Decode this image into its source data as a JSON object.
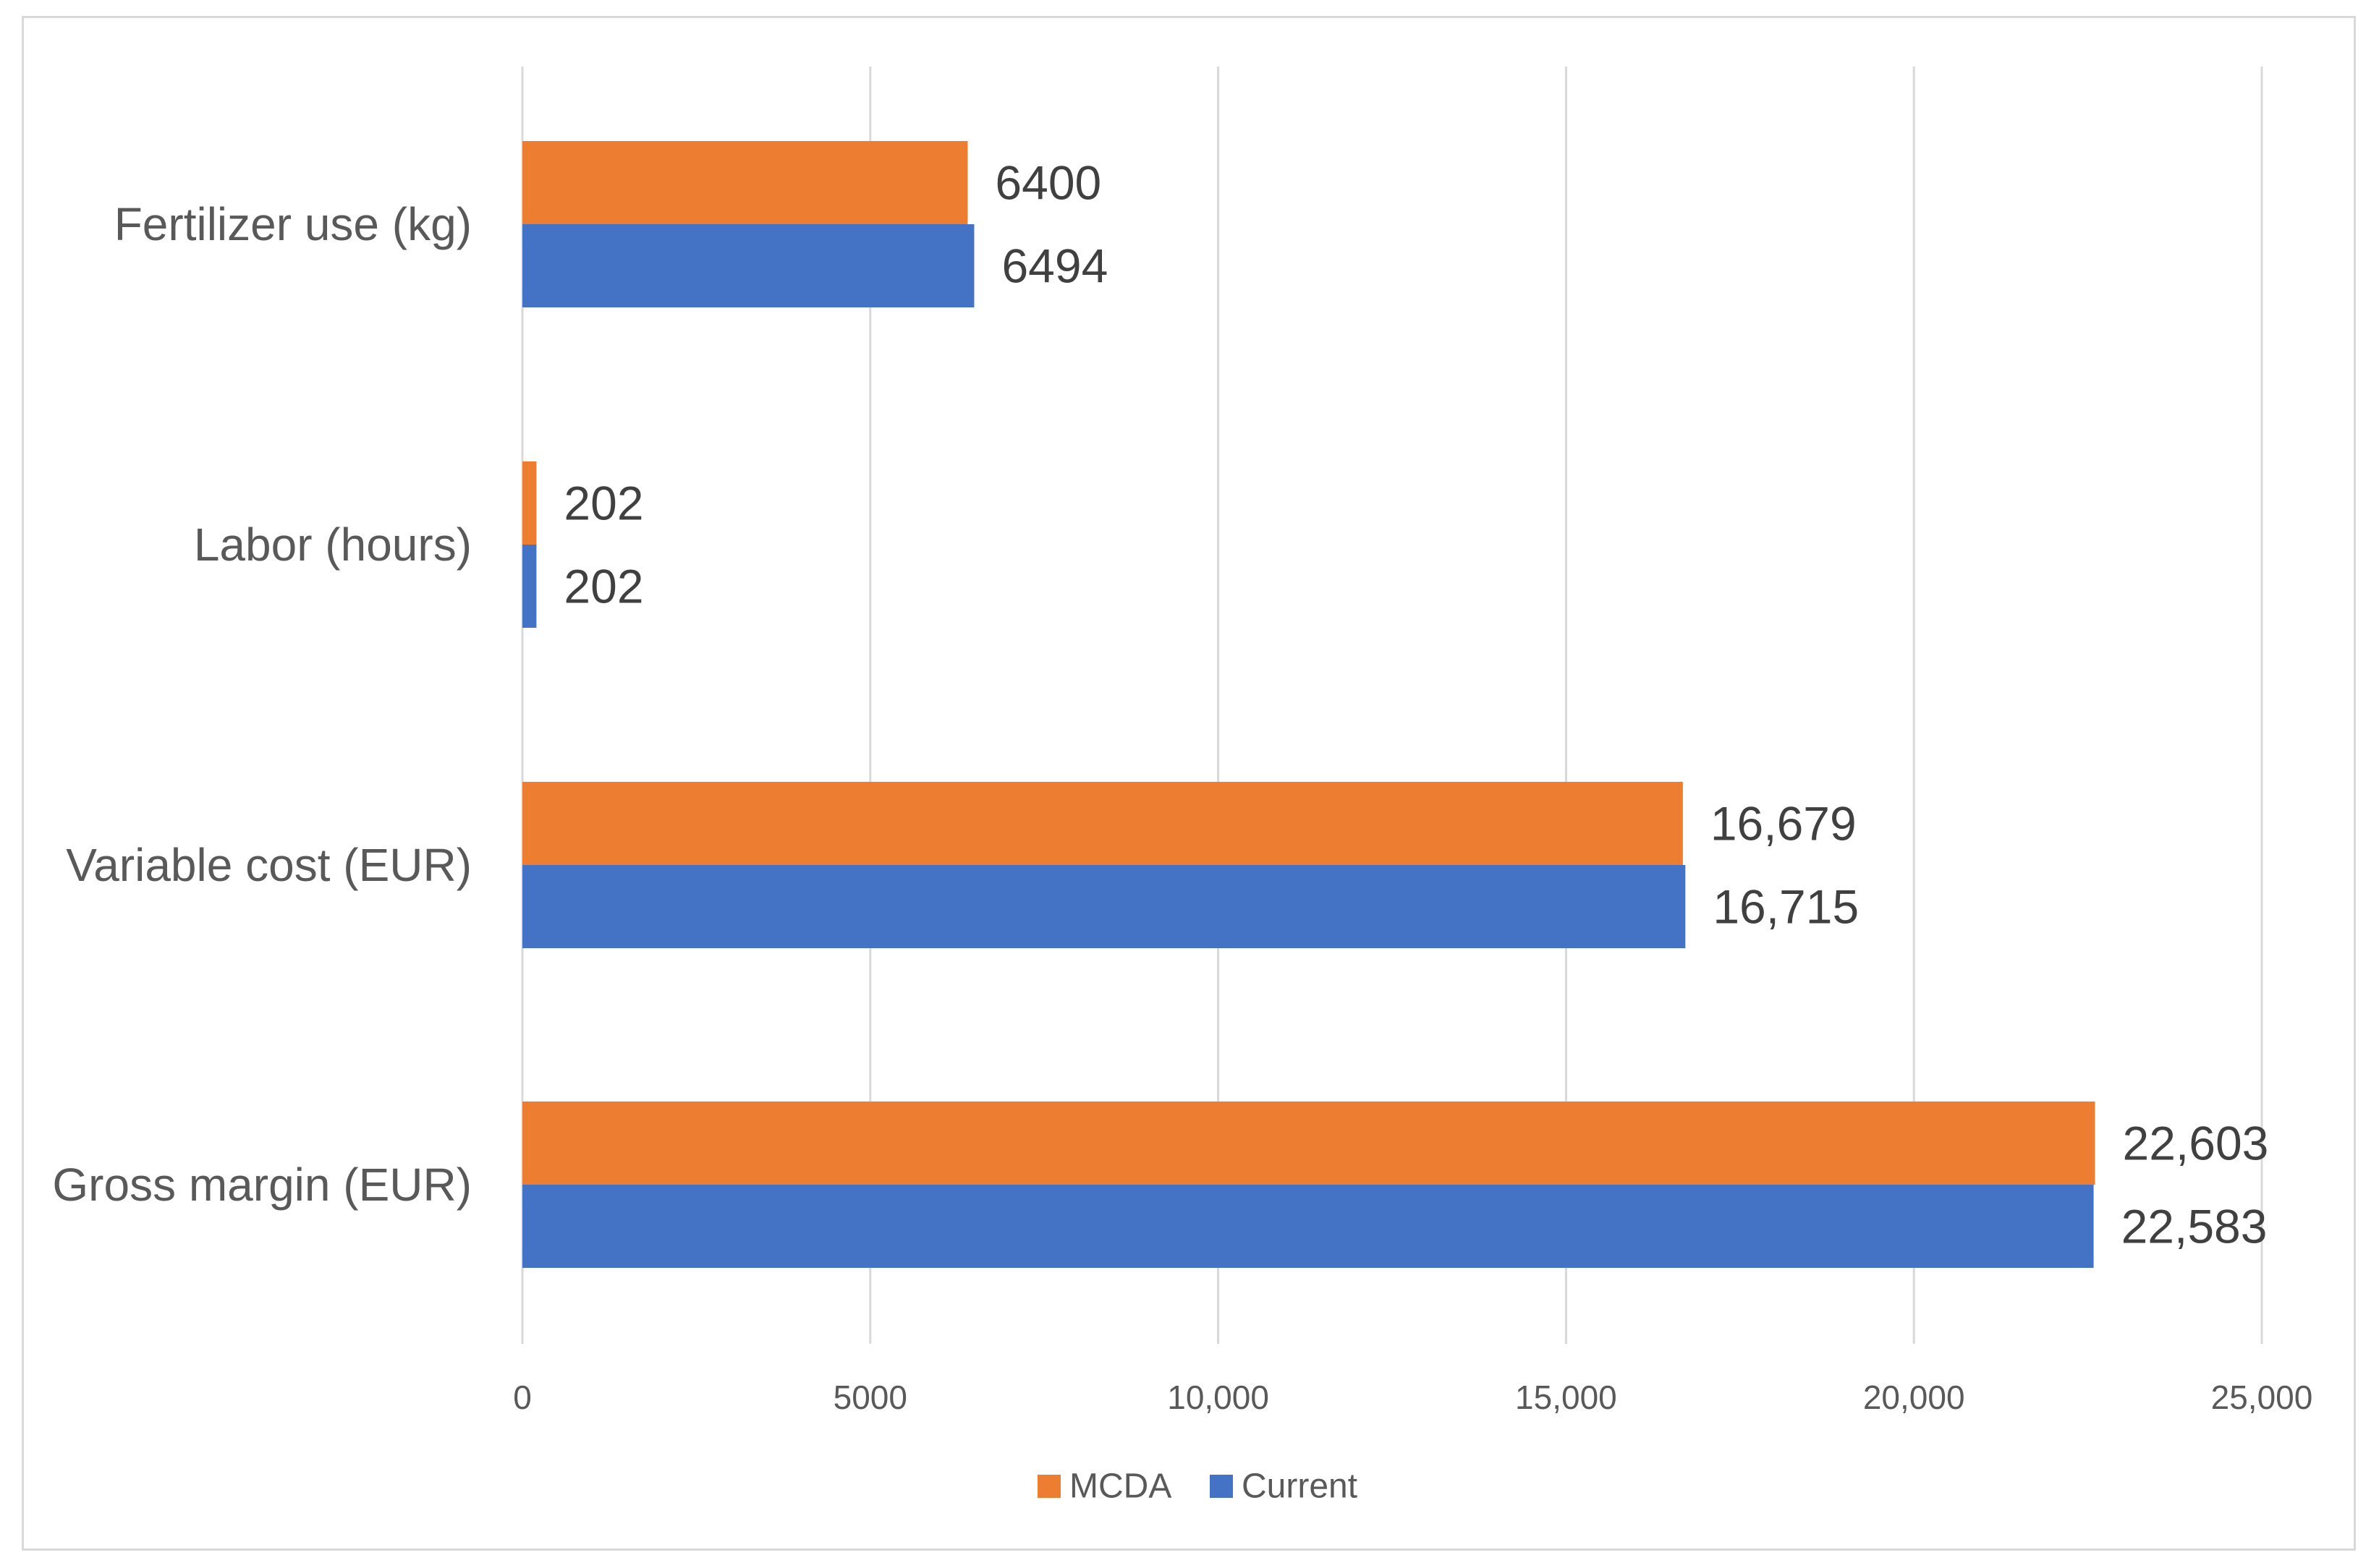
{
  "chart_data": {
    "type": "bar",
    "orientation": "horizontal",
    "title": "",
    "xlabel": "",
    "ylabel": "",
    "categories": [
      "Fertilizer use (kg)",
      "Labor (hours)",
      "Variable cost (EUR)",
      "Gross margin (EUR)"
    ],
    "series": [
      {
        "name": "MCDA",
        "color": "#ED7D31",
        "values": [
          6400,
          202,
          16679,
          22603
        ],
        "labels": [
          "6400",
          "202",
          "16,679",
          "22,603"
        ]
      },
      {
        "name": "Current",
        "color": "#4472C4",
        "values": [
          6494,
          202,
          16715,
          22583
        ],
        "labels": [
          "6494",
          "202",
          "16,715",
          "22,583"
        ]
      }
    ],
    "xlim": [
      0,
      25000
    ],
    "xticks": [
      0,
      5000,
      10000,
      15000,
      20000,
      25000
    ],
    "xtick_labels": [
      "0",
      "5000",
      "10,000",
      "15,000",
      "20,000",
      "25,000"
    ],
    "grid": true,
    "legend": "bottom"
  }
}
